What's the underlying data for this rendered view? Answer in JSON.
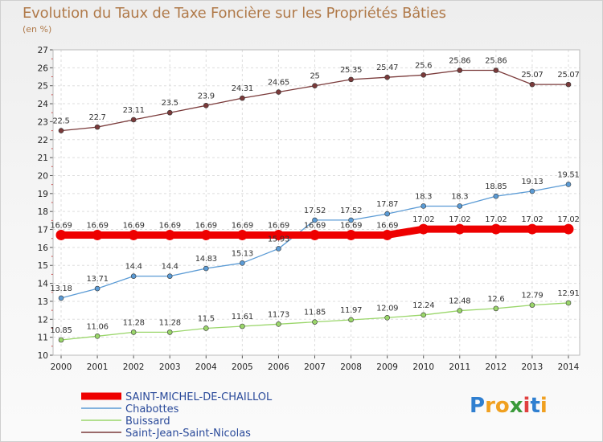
{
  "title": "Evolution du Taux de Taxe Foncière sur les Propriétés Bâties",
  "unit_label": "(en %)",
  "brand": {
    "letters": [
      "P",
      "r",
      "o",
      "x",
      "i",
      "t",
      "i"
    ],
    "colors": [
      "#2f7fd0",
      "#f0a020",
      "#f0a020",
      "#3a9a3a",
      "#e04040",
      "#2f7fd0",
      "#f0a020"
    ]
  },
  "chart_data": {
    "type": "line",
    "title": "Evolution du Taux de Taxe Foncière sur les Propriétés Bâties",
    "ylabel": "(en %)",
    "x": [
      "2000",
      "2001",
      "2002",
      "2003",
      "2004",
      "2005",
      "2006",
      "2007",
      "2008",
      "2009",
      "2010",
      "2011",
      "2012",
      "2013",
      "2014"
    ],
    "ylim": [
      10,
      27
    ],
    "yticks": [
      "10",
      "11",
      "12",
      "13",
      "14",
      "15",
      "16",
      "17",
      "18",
      "19",
      "20",
      "21",
      "22",
      "23",
      "24",
      "25",
      "26",
      "27"
    ],
    "grid": true,
    "legend_position": "bottom-left",
    "series": [
      {
        "name": "SAINT-MICHEL-DE-CHAILLOL",
        "color": "#ee0000",
        "values": [
          16.69,
          16.69,
          16.69,
          16.69,
          16.69,
          16.69,
          16.69,
          16.69,
          16.69,
          16.69,
          17.02,
          17.02,
          17.02,
          17.02,
          17.02
        ],
        "labels": [
          "16.69",
          "16.69",
          "16.69",
          "16.69",
          "16.69",
          "16.69",
          "16.69",
          "16.69",
          "16.69",
          "16.69",
          "17.02",
          "17.02",
          "17.02",
          "17.02",
          "17.02"
        ]
      },
      {
        "name": "Chabottes",
        "color": "#5b9bd5",
        "values": [
          13.18,
          13.71,
          14.4,
          14.4,
          14.83,
          15.13,
          15.93,
          17.52,
          17.52,
          17.87,
          18.3,
          18.3,
          18.85,
          19.13,
          19.51
        ],
        "labels": [
          "13.18",
          "13.71",
          "14.4",
          "14.4",
          "14.83",
          "15.13",
          "15.93",
          "17.52",
          "17.52",
          "17.87",
          "18.3",
          "18.3",
          "18.85",
          "19.13",
          "19.51"
        ]
      },
      {
        "name": "Buissard",
        "color": "#9ad66a",
        "values": [
          10.85,
          11.06,
          11.28,
          11.28,
          11.5,
          11.61,
          11.73,
          11.85,
          11.97,
          12.09,
          12.24,
          12.48,
          12.6,
          12.79,
          12.91
        ],
        "labels": [
          "10.85",
          "11.06",
          "11.28",
          "11.28",
          "11.5",
          "11.61",
          "11.73",
          "11.85",
          "11.97",
          "12.09",
          "12.24",
          "12.48",
          "12.6",
          "12.79",
          "12.91"
        ]
      },
      {
        "name": "Saint-Jean-Saint-Nicolas",
        "color": "#7a3a3a",
        "values": [
          22.5,
          22.7,
          23.11,
          23.5,
          23.9,
          24.31,
          24.65,
          25,
          25.35,
          25.47,
          25.6,
          25.86,
          25.86,
          25.07,
          25.07
        ],
        "labels": [
          "22.5",
          "22.7",
          "23.11",
          "23.5",
          "23.9",
          "24.31",
          "24.65",
          "25",
          "25.35",
          "25.47",
          "25.6",
          "25.86",
          "25.86",
          "25.07",
          "25.07"
        ]
      }
    ]
  }
}
